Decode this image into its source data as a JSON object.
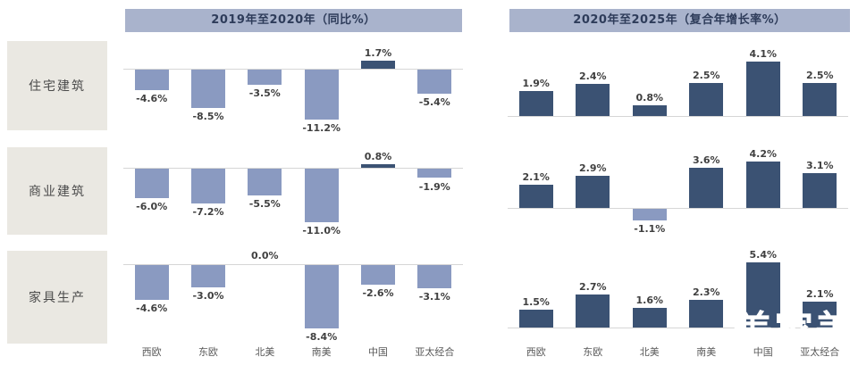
{
  "colors": {
    "positive_bar": "#3b5273",
    "negative_bar": "#8a9ac1",
    "header_bg": "#a9b3cc",
    "header_text": "#2e3c5a",
    "row_label_bg": "#eae8e2",
    "value_text": "#404040",
    "axis_text": "#595959",
    "baseline": "#d6d6d6",
    "watermark": "#ffffff"
  },
  "row_labels": [
    "住宅建筑",
    "商业建筑",
    "家具生产"
  ],
  "watermark_text": "美家美户",
  "chart_data": [
    {
      "type": "bar",
      "title": "2019年至2020年（同比%）",
      "unit": "%",
      "grid": false,
      "legend_position": "none",
      "categories": [
        "西欧",
        "东欧",
        "北美",
        "南美",
        "中国",
        "亚太经合"
      ],
      "rows": [
        {
          "name": "住宅建筑",
          "values": [
            -4.6,
            -8.5,
            -3.5,
            -11.2,
            1.7,
            -5.4
          ],
          "labels": [
            "-4.6%",
            "-8.5%",
            "-3.5%",
            "-11.2%",
            "1.7%",
            "-5.4%"
          ],
          "ylim": [
            -13.5,
            3.9
          ]
        },
        {
          "name": "商业建筑",
          "values": [
            -6.0,
            -7.2,
            -5.5,
            -11.0,
            0.8,
            -1.9
          ],
          "labels": [
            "-6.0%",
            "-7.2%",
            "-5.5%",
            "-11.0%",
            "0.8%",
            "-1.9%"
          ],
          "ylim": [
            -13.3,
            3.0
          ]
        },
        {
          "name": "家具生产",
          "values": [
            -4.6,
            -3.0,
            0.0,
            -8.4,
            -2.6,
            -3.1
          ],
          "labels": [
            "-4.6%",
            "-3.0%",
            "0.0%",
            "-8.4%",
            "-2.6%",
            "-3.1%"
          ],
          "ylim": [
            -9.3,
            1.0
          ]
        }
      ]
    },
    {
      "type": "bar",
      "title": "2020年至2025年（复合年增长率%）",
      "unit": "%",
      "grid": false,
      "legend_position": "none",
      "categories": [
        "西欧",
        "东欧",
        "北美",
        "南美",
        "中国",
        "亚太经合"
      ],
      "rows": [
        {
          "name": "住宅建筑",
          "values": [
            1.9,
            2.4,
            0.8,
            2.5,
            4.1,
            2.5
          ],
          "labels": [
            "1.9%",
            "2.4%",
            "0.8%",
            "2.5%",
            "4.1%",
            "2.5%"
          ],
          "ylim": [
            -1.0,
            4.9
          ]
        },
        {
          "name": "商业建筑",
          "values": [
            2.1,
            2.9,
            -1.1,
            3.6,
            4.2,
            3.1
          ],
          "labels": [
            "2.1%",
            "2.9%",
            "-1.1%",
            "3.6%",
            "4.2%",
            "3.1%"
          ],
          "ylim": [
            -2.2,
            4.9
          ]
        },
        {
          "name": "家具生产",
          "values": [
            1.5,
            2.7,
            1.6,
            2.3,
            5.4,
            2.1
          ],
          "labels": [
            "1.5%",
            "2.7%",
            "1.6%",
            "2.3%",
            "5.4%",
            "2.1%"
          ],
          "ylim": [
            -0.6,
            5.9
          ]
        }
      ]
    }
  ]
}
